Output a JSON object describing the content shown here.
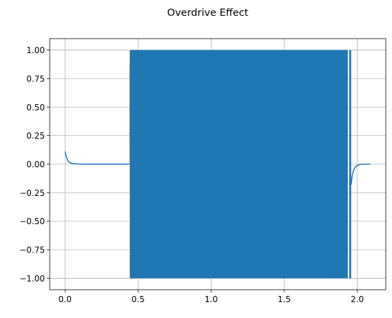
{
  "chart_data": {
    "type": "line",
    "title": "Overdrive Effect",
    "xlabel": "",
    "ylabel": "",
    "xlim": [
      -0.105,
      2.195
    ],
    "ylim": [
      -1.1,
      1.1
    ],
    "x_ticks": [
      0.0,
      0.5,
      1.0,
      1.5,
      2.0
    ],
    "x_tick_labels": [
      "0.0",
      "0.5",
      "1.0",
      "1.5",
      "2.0"
    ],
    "y_ticks": [
      1.0,
      0.75,
      0.5,
      0.25,
      0.0,
      -0.25,
      -0.5,
      -0.75,
      -1.0
    ],
    "y_tick_labels": [
      "1.00",
      "0.75",
      "0.50",
      "0.25",
      "0.00",
      "−0.25",
      "−0.50",
      "−0.75",
      "−1.00"
    ],
    "grid": true,
    "series": [
      {
        "color": "#1f77b4",
        "segments": [
          {
            "kind": "decay",
            "x": [
              0.0,
              0.01,
              0.02,
              0.03,
              0.05,
              0.08,
              0.12,
              0.2,
              0.3,
              0.44
            ],
            "y": [
              0.11,
              0.06,
              0.03,
              0.015,
              0.006,
              0.002,
              0.0,
              0.0,
              0.0,
              0.0
            ]
          },
          {
            "kind": "dense_clipped",
            "x_start": 0.443,
            "x_end": 1.935,
            "y_min": -1.0,
            "y_max": 1.0
          },
          {
            "kind": "spike",
            "x": [
              0.445,
              0.445
            ],
            "y": [
              0.0,
              0.88
            ]
          },
          {
            "kind": "dense_clipped",
            "x_start": 1.945,
            "x_end": 1.958,
            "y_min": -1.0,
            "y_max": 1.0
          },
          {
            "kind": "decay",
            "x": [
              1.958,
              1.965,
              1.975,
              1.99,
              2.01,
              2.04,
              2.09
            ],
            "y": [
              -0.18,
              -0.1,
              -0.05,
              -0.02,
              -0.005,
              0.0,
              0.0
            ]
          }
        ]
      }
    ]
  }
}
